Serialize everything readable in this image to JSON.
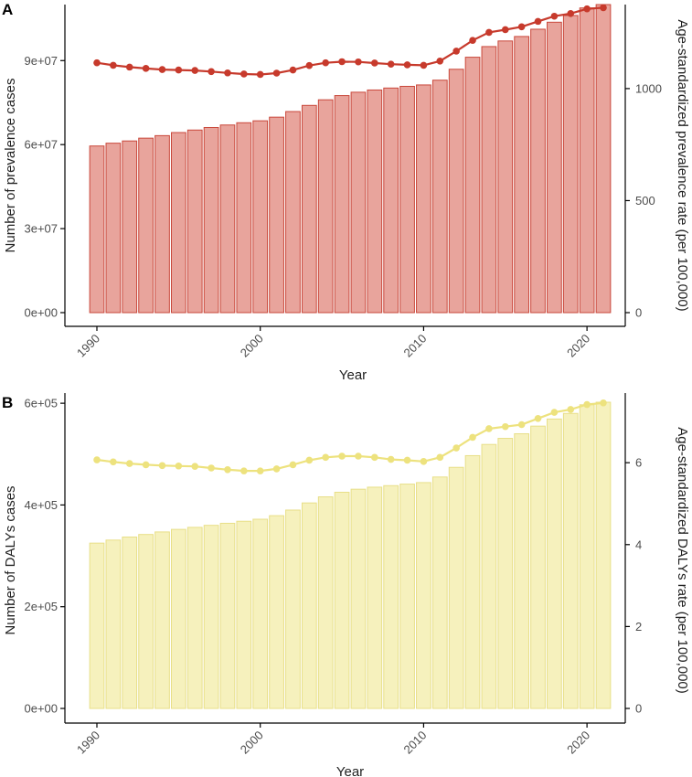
{
  "chart_data": [
    {
      "panel_label": "A",
      "type": "bar",
      "secondary_type": "line",
      "x": [
        1990,
        1991,
        1992,
        1993,
        1994,
        1995,
        1996,
        1997,
        1998,
        1999,
        2000,
        2001,
        2002,
        2003,
        2004,
        2005,
        2006,
        2007,
        2008,
        2009,
        2010,
        2011,
        2012,
        2013,
        2014,
        2015,
        2016,
        2017,
        2018,
        2019,
        2020,
        2021
      ],
      "series": [
        {
          "name": "Number of prevalence cases",
          "axis": "left",
          "values": [
            59500000.0,
            60500000.0,
            61300000.0,
            62300000.0,
            63200000.0,
            64300000.0,
            65200000.0,
            66100000.0,
            67000000.0,
            67800000.0,
            68500000.0,
            69800000.0,
            71800000.0,
            74000000.0,
            76000000.0,
            77500000.0,
            78700000.0,
            79500000.0,
            80200000.0,
            80800000.0,
            81300000.0,
            83000000.0,
            86900000.0,
            91200000.0,
            95000000.0,
            97000000.0,
            98600000.0,
            101200000.0,
            103700000.0,
            106100000.0,
            108800000.0,
            110000000.0
          ]
        },
        {
          "name": "Age-standardized prevalence rate (per 100,000)",
          "axis": "right",
          "values": [
            1115,
            1104,
            1096,
            1090,
            1085,
            1083,
            1081,
            1076,
            1070,
            1065,
            1063,
            1069,
            1083,
            1103,
            1115,
            1120,
            1119,
            1114,
            1109,
            1106,
            1104,
            1123,
            1167,
            1215,
            1251,
            1263,
            1276,
            1300,
            1323,
            1335,
            1356,
            1361
          ]
        }
      ],
      "xlabel": "Year",
      "ylabel": "Number of prevalence cases",
      "y2label": "Age-standardized prevalence rate (per 100,000)",
      "xticks": [
        "1990",
        "2000",
        "2010",
        "2020"
      ],
      "yticks": [
        "0e+00",
        "3e+07",
        "6e+07",
        "9e+07"
      ],
      "y2ticks": [
        "0",
        "500",
        "1000"
      ],
      "ylim": [
        0,
        110000000.0
      ],
      "y2lim": [
        0,
        1375
      ],
      "bar_fill": "#e8a49c",
      "bar_stroke": "#c9473a",
      "line_color": "#c73a2c"
    },
    {
      "panel_label": "B",
      "type": "bar",
      "secondary_type": "line",
      "x": [
        1990,
        1991,
        1992,
        1993,
        1994,
        1995,
        1996,
        1997,
        1998,
        1999,
        2000,
        2001,
        2002,
        2003,
        2004,
        2005,
        2006,
        2007,
        2008,
        2009,
        2010,
        2011,
        2012,
        2013,
        2014,
        2015,
        2016,
        2017,
        2018,
        2019,
        2020,
        2021
      ],
      "series": [
        {
          "name": "Number of DALYs cases",
          "axis": "left",
          "values": [
            325000.0,
            331000.0,
            337000.0,
            342000.0,
            347000.0,
            352000.0,
            356000.0,
            360000.0,
            364000.0,
            368000.0,
            372000.0,
            379000.0,
            390000.0,
            404000.0,
            416000.0,
            425000.0,
            431000.0,
            435000.0,
            438000.0,
            441000.0,
            444000.0,
            455000.0,
            474000.0,
            497000.0,
            519000.0,
            531000.0,
            540000.0,
            555000.0,
            569000.0,
            580000.0,
            597000.0,
            602000.0
          ]
        },
        {
          "name": "Age-standardized DALYs rate (per 100,000)",
          "axis": "right",
          "values": [
            6.07,
            6.02,
            5.98,
            5.95,
            5.93,
            5.92,
            5.91,
            5.87,
            5.83,
            5.8,
            5.8,
            5.85,
            5.95,
            6.06,
            6.13,
            6.16,
            6.16,
            6.13,
            6.08,
            6.06,
            6.03,
            6.13,
            6.36,
            6.62,
            6.83,
            6.88,
            6.93,
            7.08,
            7.23,
            7.3,
            7.42,
            7.46
          ]
        }
      ],
      "xlabel": "Year",
      "ylabel": "Number of DALYs cases",
      "y2label": "Age-standardized DALYs rate (per 100,000)",
      "xticks": [
        "1990",
        "2000",
        "2010",
        "2020"
      ],
      "yticks": [
        "0e+00",
        "2e+05",
        "4e+05",
        "6e+05"
      ],
      "y2ticks": [
        "0",
        "2",
        "4",
        "6"
      ],
      "ylim": [
        0,
        620000.0
      ],
      "y2lim": [
        0,
        7.7
      ],
      "bar_fill": "#f6f1bd",
      "bar_stroke": "#e8df88",
      "line_color": "#ede27e"
    }
  ]
}
